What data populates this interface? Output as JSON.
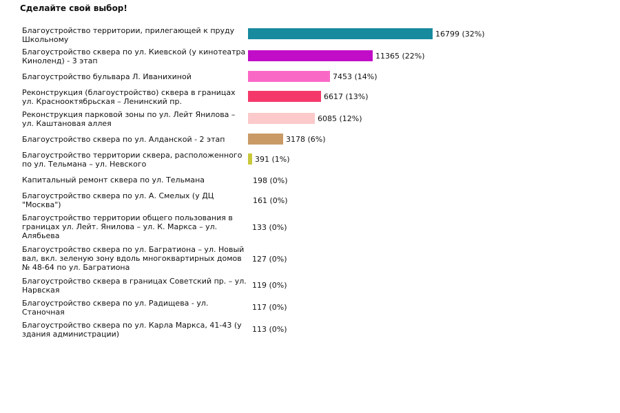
{
  "title": "Сделайте свой выбор!",
  "chart_data": {
    "type": "bar",
    "orientation": "horizontal",
    "title": "Сделайте свой выбор!",
    "xlim": [
      0,
      16799
    ],
    "grid": false,
    "legend": "none",
    "categories": [
      "Благоустройство территории, прилегающей к пруду Школьному",
      "Благоустройство сквера по ул. Киевской (у кинотеатра Киноленд) - 3 этап",
      "Благоустройство бульвара Л. Иванихиной",
      "Реконструкция (благоустройство) сквера в границах ул. Краснооктябрьская – Ленинский пр.",
      "Реконструкция парковой зоны по ул. Лейт Янилова – ул. Каштановая аллея",
      "Благоустройство сквера по ул. Алданской - 2 этап",
      "Благоустройство территории сквера, расположенного по ул. Тельмана – ул. Невского",
      "Капитальный ремонт сквера по ул. Тельмана",
      "Благоустройство сквера по ул. А. Смелых (у ДЦ \"Москва\")",
      "Благоустройство территории общего пользования в границах ул. Лейт. Янилова – ул. К. Маркса – ул. Алябьева",
      "Благоустройство сквера по ул. Багратиона – ул. Новый вал, вкл. зеленую зону вдоль многоквартирных домов № 48-64 по ул. Багратиона",
      "Благоустройство сквера в границах Советский пр. – ул. Нарвская",
      "Благоустройство сквера по ул. Радищева - ул. Станочная",
      "Благоустройство сквера по ул. Карла Маркса, 41-43 (у здания администрации)"
    ],
    "values": [
      16799,
      11365,
      7453,
      6617,
      6085,
      3178,
      391,
      198,
      161,
      133,
      127,
      119,
      117,
      113
    ],
    "percents": [
      "32%",
      "22%",
      "14%",
      "13%",
      "12%",
      "6%",
      "1%",
      "0%",
      "0%",
      "0%",
      "0%",
      "0%",
      "0%",
      "0%"
    ],
    "colors": [
      "#188a9e",
      "#c10dc7",
      "#fa68c6",
      "#f5386a",
      "#fccaca",
      "#c99a66",
      "#c8c83a",
      "#ffffff",
      "#ffffff",
      "#ffffff",
      "#ffffff",
      "#ffffff",
      "#ffffff",
      "#ffffff"
    ]
  }
}
